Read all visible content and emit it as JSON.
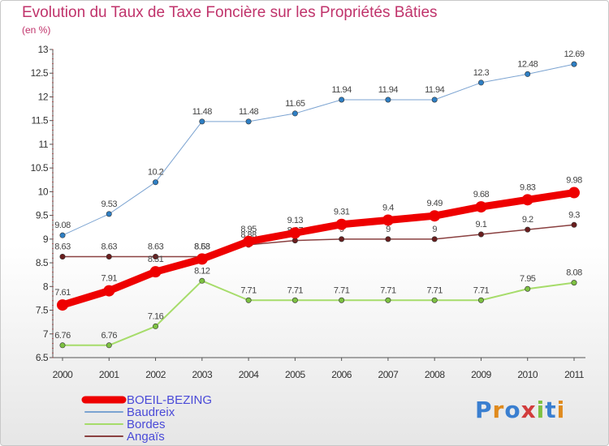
{
  "title": "Evolution du Taux de Taxe Foncière sur les Propriétés Bâties",
  "subtitle": "(en %)",
  "logo_text": "Proxiti",
  "chart_data": {
    "type": "line",
    "x": [
      2000,
      2001,
      2002,
      2003,
      2004,
      2005,
      2006,
      2007,
      2008,
      2009,
      2010,
      2011
    ],
    "ylim": [
      6.5,
      13
    ],
    "yticks": [
      6.5,
      7,
      7.5,
      8,
      8.5,
      9,
      9.5,
      10,
      10.5,
      11,
      11.5,
      12,
      12.5,
      13
    ],
    "grid": false,
    "legend_position": "bottom-left",
    "series": [
      {
        "name": "Baudreix",
        "color": "#7ba3d1",
        "marker": "#2e7fc4",
        "width": 1,
        "values": [
          9.08,
          9.53,
          10.2,
          11.48,
          11.48,
          11.65,
          11.94,
          11.94,
          11.94,
          12.3,
          12.48,
          12.69
        ],
        "labels": [
          "9.08",
          "9.53",
          "10.2",
          "11.48",
          "11.48",
          "11.65",
          "11.94",
          "11.94",
          "11.94",
          "12.3",
          "12.48",
          "12.69"
        ]
      },
      {
        "name": "Bordes",
        "color": "#a6dc6a",
        "marker": "#7dc142",
        "width": 2,
        "values": [
          6.76,
          6.76,
          7.16,
          8.12,
          7.71,
          7.71,
          7.71,
          7.71,
          7.71,
          7.71,
          7.95,
          8.08
        ],
        "labels": [
          "6.76",
          "6.76",
          "7.16",
          "8.12",
          "7.71",
          "7.71",
          "7.71",
          "7.71",
          "7.71",
          "7.71",
          "7.95",
          "8.08"
        ]
      },
      {
        "name": "Angaïs",
        "color": "#8a4040",
        "marker": "#6a1e1e",
        "width": 1.5,
        "values": [
          8.63,
          8.63,
          8.63,
          8.63,
          8.88,
          8.97,
          9,
          9,
          9,
          9.1,
          9.2,
          9.3
        ],
        "labels": [
          "8.63",
          "8.63",
          "8.63",
          "8.63",
          "8.88",
          "8.97",
          "9",
          "9",
          "9",
          "9.1",
          "9.2",
          "9.3"
        ]
      },
      {
        "name": "BOEIL-BEZING",
        "color": "#ee0000",
        "marker": "#ee0000",
        "width": 9,
        "values": [
          7.61,
          7.91,
          8.31,
          8.58,
          8.95,
          9.13,
          9.31,
          9.4,
          9.49,
          9.68,
          9.83,
          9.98
        ],
        "labels": [
          "7.61",
          "7.91",
          "8.31",
          "8.58",
          "8.95",
          "9.13",
          "9.31",
          "9.4",
          "9.49",
          "9.68",
          "9.83",
          "9.98"
        ]
      }
    ],
    "legend": [
      "BOEIL-BEZING",
      "Baudreix",
      "Bordes",
      "Angaïs"
    ]
  }
}
